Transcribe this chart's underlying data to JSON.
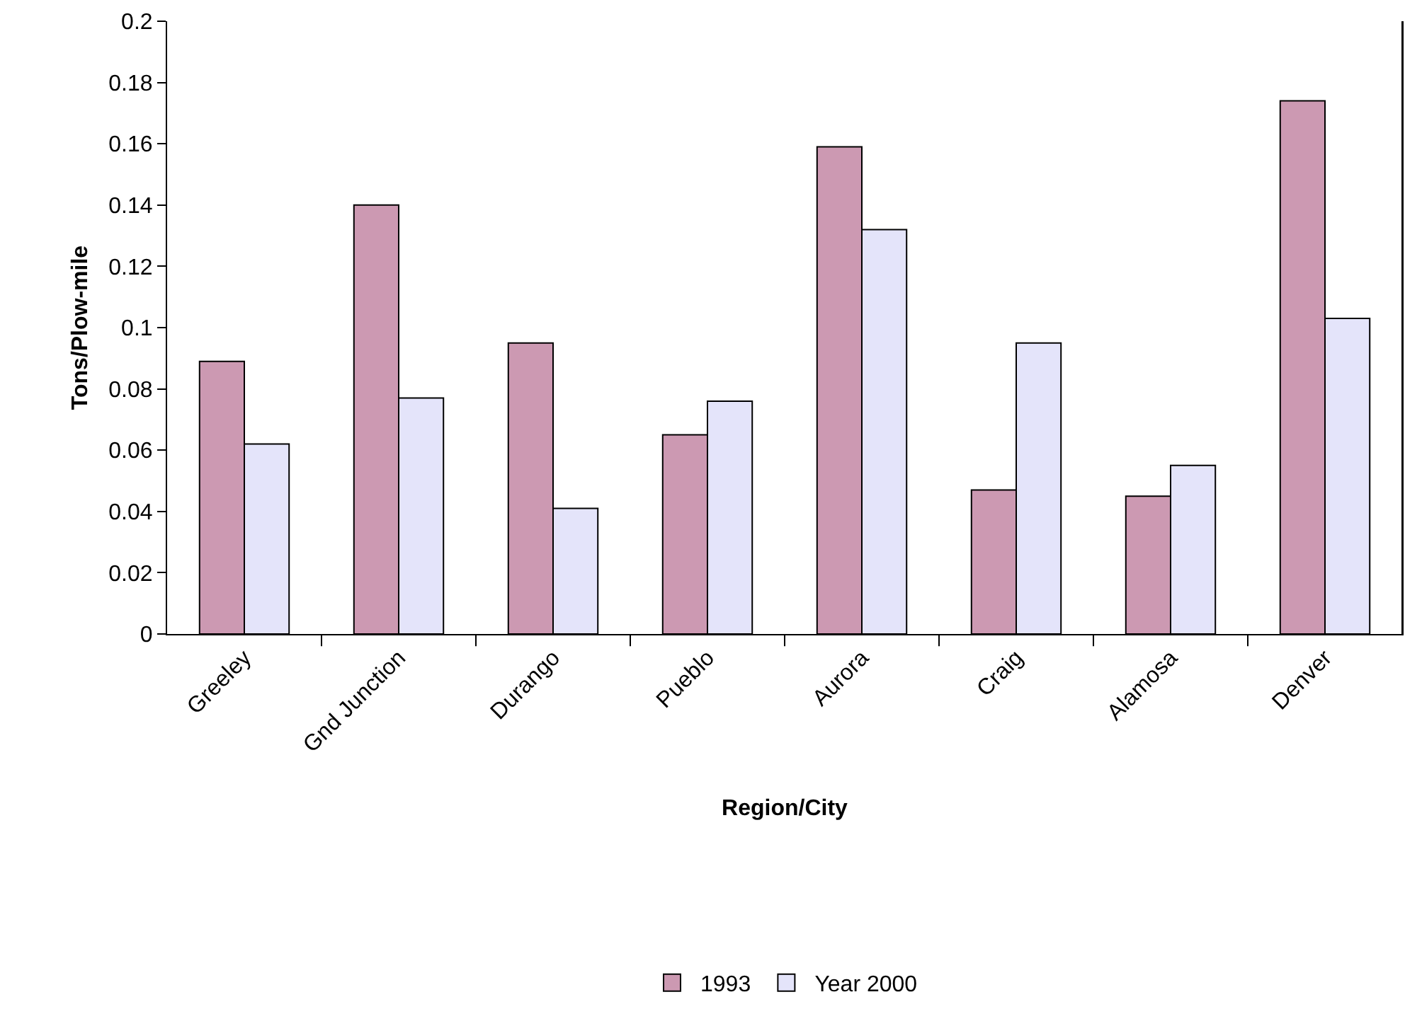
{
  "chart_data": {
    "type": "bar",
    "xlabel": "Region/City",
    "ylabel": "Tons/Plow-mile",
    "categories": [
      "Greeley",
      "Gnd Junction",
      "Durango",
      "Pueblo",
      "Aurora",
      "Craig",
      "Alamosa",
      "Denver"
    ],
    "series": [
      {
        "name": "1993",
        "color": "#cc99b2",
        "values": [
          0.089,
          0.14,
          0.095,
          0.065,
          0.159,
          0.047,
          0.045,
          0.174
        ]
      },
      {
        "name": "Year 2000",
        "color": "#e4e4fa",
        "values": [
          0.062,
          0.077,
          0.041,
          0.076,
          0.132,
          0.095,
          0.055,
          0.103
        ]
      }
    ],
    "ylim": [
      0,
      0.2
    ],
    "yticks": [
      0,
      0.02,
      0.04,
      0.06,
      0.08,
      0.1,
      0.12,
      0.14,
      0.16,
      0.18,
      0.2
    ],
    "grid": false,
    "legend": "bottom"
  }
}
